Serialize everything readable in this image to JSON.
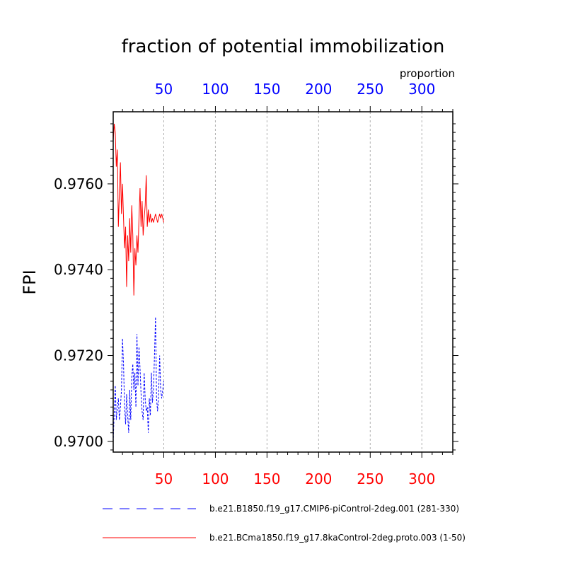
{
  "chart_data": {
    "type": "line",
    "title": "fraction of potential immobilization",
    "ylabel": "FPI",
    "top_axis_label": "proportion",
    "xlim": [
      1,
      330
    ],
    "ylim": [
      0.96975,
      0.97768
    ],
    "grid": "vertical-dashed",
    "x_ticks": [
      {
        "value": 50,
        "label": "50"
      },
      {
        "value": 100,
        "label": "100"
      },
      {
        "value": 150,
        "label": "150"
      },
      {
        "value": 200,
        "label": "200"
      },
      {
        "value": 250,
        "label": "250"
      },
      {
        "value": 300,
        "label": "300"
      }
    ],
    "y_ticks": [
      {
        "value": 0.97,
        "label": "0.9700"
      },
      {
        "value": 0.972,
        "label": "0.9720"
      },
      {
        "value": 0.974,
        "label": "0.9740"
      },
      {
        "value": 0.976,
        "label": "0.9760"
      }
    ],
    "bottom_tick_color": "#ff0000",
    "top_tick_color": "#0000ff",
    "series": [
      {
        "name": "b.e21.B1850.f19_g17.CMIP6-piControl-2deg.001 (281-330)",
        "color": "#0000ff",
        "dash": "dashed",
        "x": [
          1,
          2,
          3,
          4,
          5,
          6,
          7,
          8,
          9,
          10,
          11,
          12,
          13,
          14,
          15,
          16,
          17,
          18,
          19,
          20,
          21,
          22,
          23,
          24,
          25,
          26,
          27,
          28,
          29,
          30,
          31,
          32,
          33,
          34,
          35,
          36,
          37,
          38,
          39,
          40,
          41,
          42,
          43,
          44,
          45,
          46,
          47,
          48,
          49,
          50
        ],
        "values": [
          0.97,
          0.9707,
          0.9713,
          0.9705,
          0.9708,
          0.971,
          0.9705,
          0.9708,
          0.9712,
          0.9724,
          0.9718,
          0.9708,
          0.9704,
          0.9711,
          0.9706,
          0.9702,
          0.9712,
          0.9705,
          0.9715,
          0.9718,
          0.9712,
          0.9716,
          0.9708,
          0.9725,
          0.9713,
          0.9722,
          0.9717,
          0.9711,
          0.9707,
          0.9705,
          0.9716,
          0.971,
          0.9707,
          0.9708,
          0.9702,
          0.971,
          0.9706,
          0.9716,
          0.9709,
          0.9712,
          0.972,
          0.9729,
          0.971,
          0.9707,
          0.9711,
          0.972,
          0.9712,
          0.971,
          0.9712,
          0.9714
        ]
      },
      {
        "name": "b.e21.BCma1850.f19_g17.8kaControl-2deg.proto.003 (1-50)",
        "color": "#ff0000",
        "dash": "solid",
        "x": [
          1,
          2,
          3,
          4,
          5,
          6,
          7,
          8,
          9,
          10,
          11,
          12,
          13,
          14,
          15,
          16,
          17,
          18,
          19,
          20,
          21,
          22,
          23,
          24,
          25,
          26,
          27,
          28,
          29,
          30,
          31,
          32,
          33,
          34,
          35,
          36,
          37,
          38,
          39,
          40,
          41,
          42,
          43,
          44,
          45,
          46,
          47,
          48,
          49,
          50
        ],
        "values": [
          0.977,
          0.9774,
          0.9772,
          0.9764,
          0.9768,
          0.975,
          0.9758,
          0.9765,
          0.9753,
          0.976,
          0.9752,
          0.9745,
          0.975,
          0.9736,
          0.9748,
          0.9742,
          0.9752,
          0.9744,
          0.9755,
          0.9748,
          0.9734,
          0.9745,
          0.9741,
          0.9748,
          0.9744,
          0.9752,
          0.9759,
          0.975,
          0.9756,
          0.9748,
          0.9752,
          0.9755,
          0.9762,
          0.975,
          0.9754,
          0.9751,
          0.9753,
          0.9751,
          0.9752,
          0.9751,
          0.9752,
          0.9753,
          0.9752,
          0.9751,
          0.9752,
          0.9753,
          0.9752,
          0.9753,
          0.9752,
          0.9751
        ]
      }
    ]
  }
}
